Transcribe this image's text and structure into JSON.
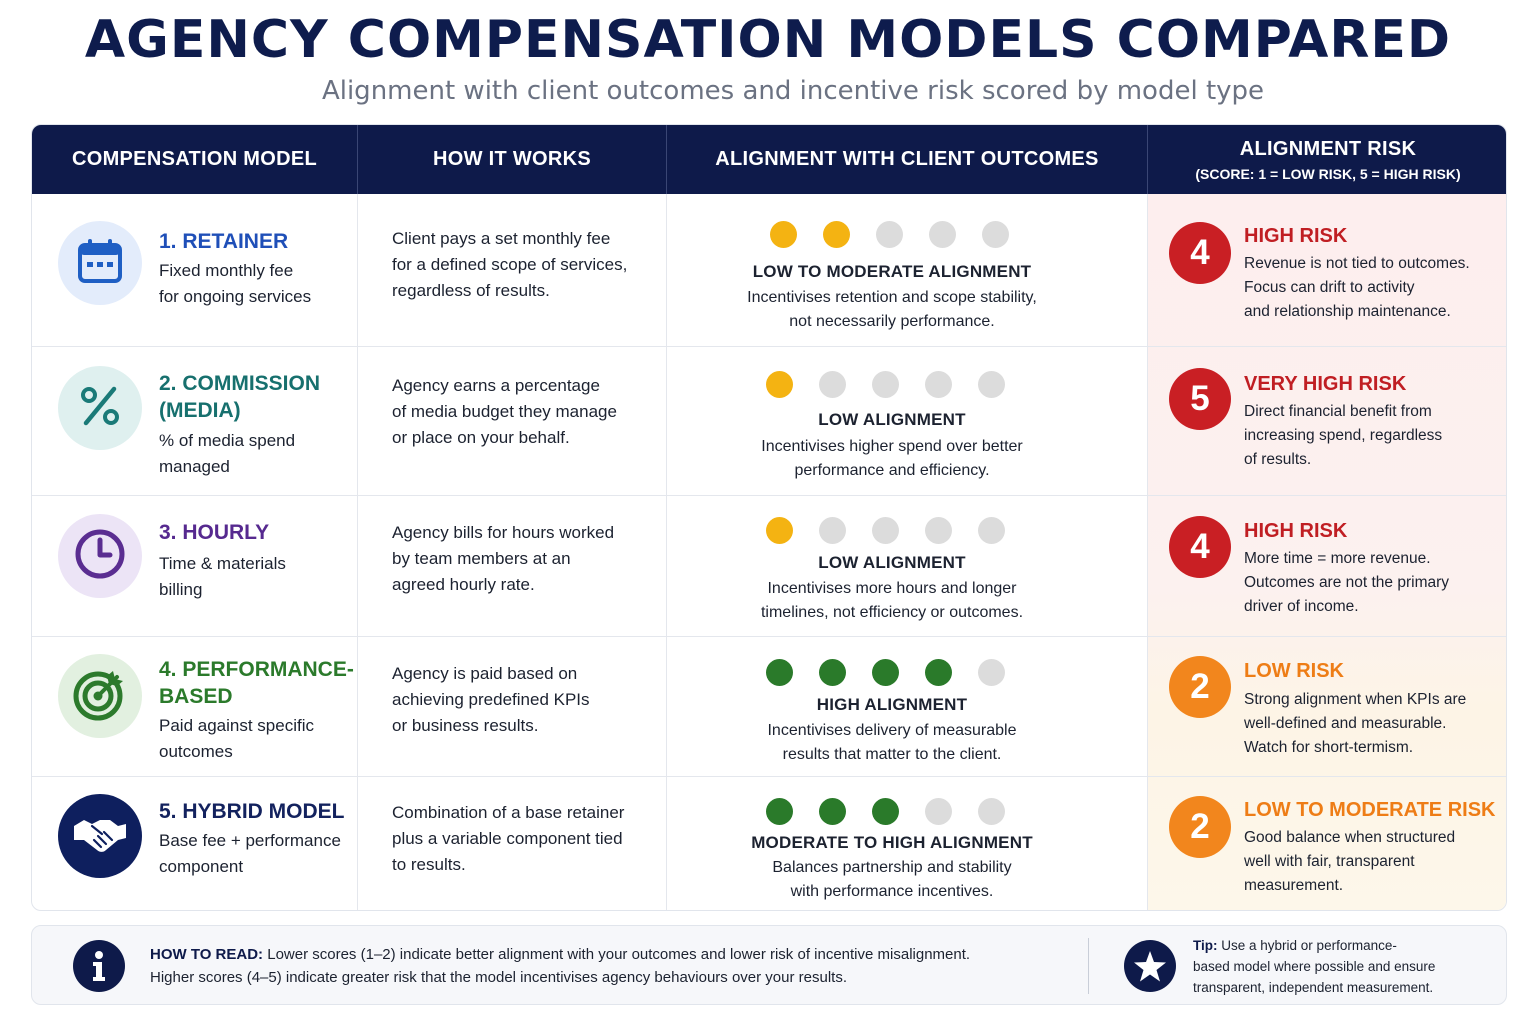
{
  "title": "AGENCY COMPENSATION MODELS COMPARED",
  "subtitle": "Alignment with client outcomes and incentive risk scored by model type",
  "headers": {
    "model": "COMPENSATION MODEL",
    "how": "HOW IT WORKS",
    "alignment": "ALIGNMENT WITH CLIENT OUTCOMES",
    "risk": "ALIGNMENT RISK",
    "risk_sub": "(SCORE: 1 = LOW RISK, 5 = HIGH RISK)"
  },
  "rows": [
    {
      "icon": "calendar-icon",
      "icon_color": "#1f5fc4",
      "icon_bg": "#e3ecfb",
      "title_color": "#1f4fb8",
      "title_lines": [
        "1. RETAINER"
      ],
      "desc_lines": [
        "Fixed monthly fee",
        "for ongoing services"
      ],
      "how_lines": [
        "Client pays a set monthly fee",
        "for a defined scope of services,",
        "regardless of results."
      ],
      "alignment_dots": 2,
      "dot_color": "yellow",
      "alignment_title": "LOW TO MODERATE ALIGNMENT",
      "alignment_desc_lines": [
        "Incentivises retention and scope stability,",
        "not necessarily performance."
      ],
      "risk_score": "4",
      "risk_color": "red",
      "risk_title": "HIGH RISK",
      "risk_desc_lines": [
        "Revenue is not tied to outcomes.",
        "Focus can drift to activity",
        "and relationship maintenance."
      ]
    },
    {
      "icon": "percent-icon",
      "icon_color": "#1a7a78",
      "icon_bg": "#dff0ef",
      "title_color": "#17706e",
      "title_lines": [
        "2. COMMISSION",
        "(MEDIA)"
      ],
      "desc_lines": [
        "% of media spend",
        "managed"
      ],
      "how_lines": [
        "Agency earns a percentage",
        "of media budget they manage",
        "or place on your behalf."
      ],
      "alignment_dots": 1,
      "dot_color": "yellow",
      "alignment_title": "LOW ALIGNMENT",
      "alignment_desc_lines": [
        "Incentivises higher spend over better",
        "performance and efficiency."
      ],
      "risk_score": "5",
      "risk_color": "red",
      "risk_title": "VERY HIGH RISK",
      "risk_desc_lines": [
        "Direct financial benefit from",
        "increasing spend, regardless",
        "of results."
      ]
    },
    {
      "icon": "clock-icon",
      "icon_color": "#5a2d91",
      "icon_bg": "#ece4f6",
      "title_color": "#56298f",
      "title_lines": [
        "3. HOURLY"
      ],
      "desc_lines": [
        "Time & materials",
        "billing"
      ],
      "how_lines": [
        "Agency bills for hours worked",
        "by team members at an",
        "agreed hourly rate."
      ],
      "alignment_dots": 1,
      "dot_color": "yellow",
      "alignment_title": "LOW ALIGNMENT",
      "alignment_desc_lines": [
        "Incentivises more hours and longer",
        "timelines, not efficiency or outcomes."
      ],
      "risk_score": "4",
      "risk_color": "red",
      "risk_title": "HIGH RISK",
      "risk_desc_lines": [
        "More time = more revenue.",
        "Outcomes are not the primary",
        "driver of income."
      ]
    },
    {
      "icon": "target-icon",
      "icon_color": "#2c7a2c",
      "icon_bg": "#e2f0e0",
      "title_color": "#2b7a2b",
      "title_lines": [
        "4. PERFORMANCE-",
        "BASED"
      ],
      "desc_lines": [
        "Paid against specific",
        "outcomes"
      ],
      "how_lines": [
        "Agency is paid based on",
        "achieving predefined KPIs",
        "or business results."
      ],
      "alignment_dots": 4,
      "dot_color": "green",
      "alignment_title": "HIGH ALIGNMENT",
      "alignment_desc_lines": [
        "Incentivises delivery of measurable",
        "results that matter to the client."
      ],
      "risk_score": "2",
      "risk_color": "orange",
      "risk_title": "LOW RISK",
      "risk_desc_lines": [
        "Strong alignment when KPIs are",
        "well-defined and measurable.",
        "Watch for short-termism."
      ]
    },
    {
      "icon": "handshake-icon",
      "icon_color": "#ffffff",
      "icon_bg": "#0e1f5e",
      "title_color": "#13225e",
      "title_lines": [
        "5. HYBRID MODEL"
      ],
      "desc_lines": [
        "Base fee + performance",
        "component"
      ],
      "how_lines": [
        "Combination of a base retainer",
        "plus a variable component tied",
        "to results."
      ],
      "alignment_dots": 3,
      "dot_color": "green",
      "alignment_title": "MODERATE TO HIGH ALIGNMENT",
      "alignment_desc_lines": [
        "Balances partnership and stability",
        "with performance incentives."
      ],
      "risk_score": "2",
      "risk_color": "orange",
      "risk_title": "LOW TO MODERATE RISK",
      "risk_desc_lines": [
        "Good balance when structured",
        "well with fair, transparent",
        "measurement."
      ]
    }
  ],
  "footer": {
    "how_label": "HOW TO READ:",
    "how_line1": "Lower scores (1–2) indicate better alignment with your outcomes and lower risk of incentive misalignment.",
    "how_line2": "Higher scores (4–5) indicate greater risk that the model incentivises agency behaviours over your results.",
    "tip_label": "Tip:",
    "tip_line1": "Use a hybrid or performance-",
    "tip_line2": "based model where possible and ensure",
    "tip_line3": "transparent, independent measurement."
  }
}
